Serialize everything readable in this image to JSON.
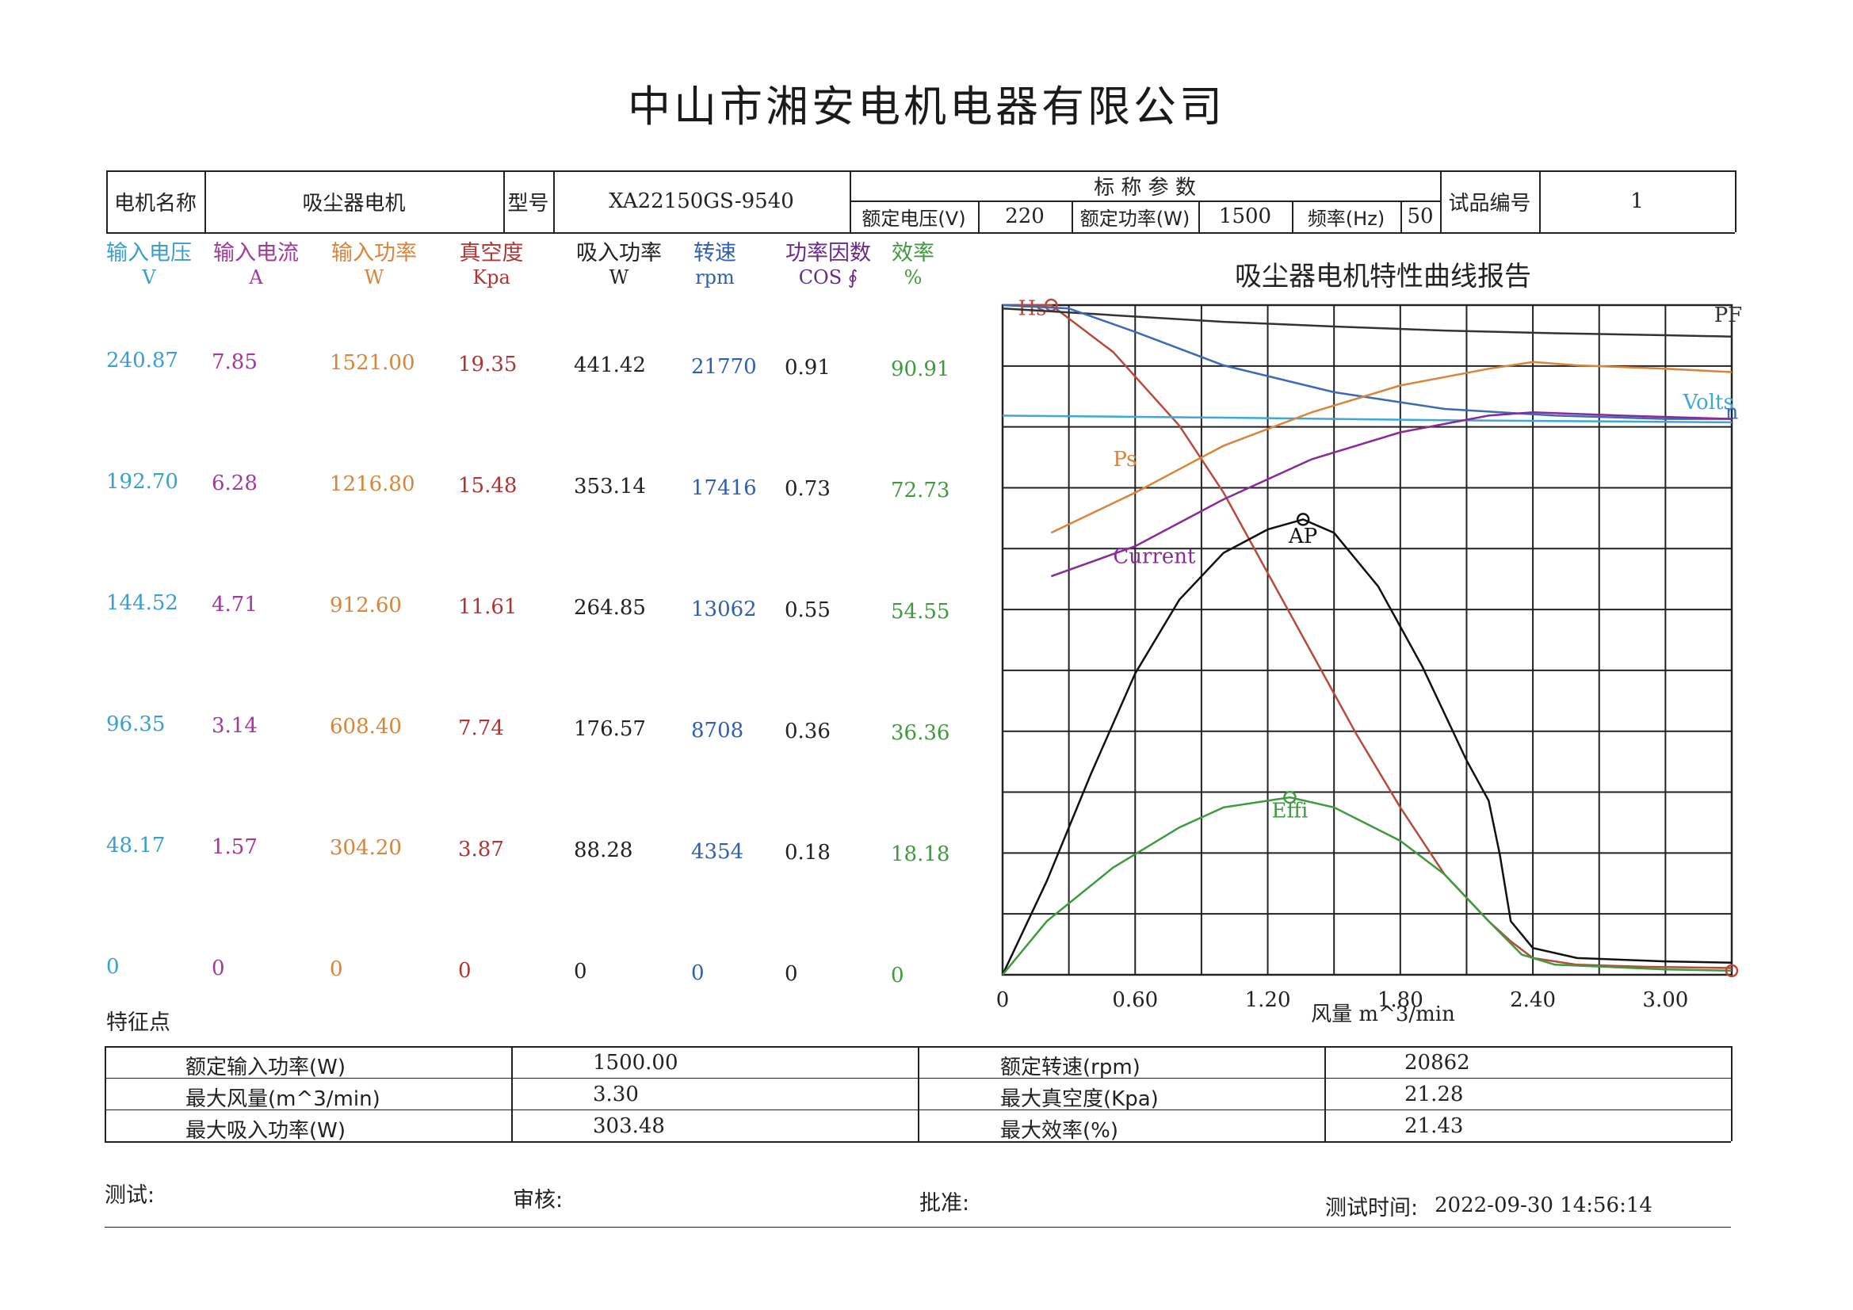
{
  "title": "中山市湘安电机电器有限公司",
  "header": {
    "motor_name_label": "电机名称",
    "motor_name": "吸尘器电机",
    "model_label": "型号",
    "model": "XA22150GS-9540",
    "nominal_params_label": "标 称 参 数",
    "rated_voltage_label": "额定电压(V)",
    "rated_voltage": "220",
    "rated_power_label": "额定功率(W)",
    "rated_power": "1500",
    "frequency_label": "频率(Hz)",
    "frequency": "50",
    "sample_no_label": "试品编号",
    "sample_no": "1"
  },
  "table": {
    "columns": [
      {
        "name": "输入电压",
        "unit": "V",
        "color": "#3a9fd0"
      },
      {
        "name": "输入电流",
        "unit": "A",
        "color": "#a33a9a"
      },
      {
        "name": "输入功率",
        "unit": "W",
        "color": "#d8843a"
      },
      {
        "name": "真空度",
        "unit": "Kpa",
        "color": "#b03434"
      },
      {
        "name": "吸入功率",
        "unit": "W",
        "color": "#222222"
      },
      {
        "name": "转速",
        "unit": "rpm",
        "color": "#2f5fb0"
      },
      {
        "name": "功率因数",
        "unit": "COS ∮",
        "color": "#6a2a8a"
      },
      {
        "name": "效率",
        "unit": "%",
        "color": "#3f9a3f"
      }
    ],
    "rows": [
      [
        "240.87",
        "7.85",
        "1521.00",
        "19.35",
        "441.42",
        "21770",
        "0.91",
        "90.91"
      ],
      [
        "192.70",
        "6.28",
        "1216.80",
        "15.48",
        "353.14",
        "17416",
        "0.73",
        "72.73"
      ],
      [
        "144.52",
        "4.71",
        "912.60",
        "11.61",
        "264.85",
        "13062",
        "0.55",
        "54.55"
      ],
      [
        "96.35",
        "3.14",
        "608.40",
        "7.74",
        "176.57",
        "8708",
        "0.36",
        "36.36"
      ],
      [
        "48.17",
        "1.57",
        "304.20",
        "3.87",
        "88.28",
        "4354",
        "0.18",
        "18.18"
      ],
      [
        "0",
        "0",
        "0",
        "0",
        "0",
        "0",
        "0",
        "0"
      ]
    ],
    "value_colors": [
      "#3a9fd0",
      "#a33a9a",
      "#d8843a",
      "#b03434",
      "#222222",
      "#2f5fb0",
      "#222222",
      "#3f9a3f"
    ]
  },
  "chart_data": {
    "type": "line",
    "title": "吸尘器电机特性曲线报告",
    "xlabel": "风量  m^3/min",
    "x_ticks": [
      "0",
      "0.60",
      "1.20",
      "1.80",
      "2.40",
      "3.00"
    ],
    "xlim": [
      0,
      3.3
    ],
    "series": [
      {
        "name": "Hs",
        "color": "#b84a3a",
        "marker_x": 0.22,
        "points": [
          [
            0.0,
            1.0
          ],
          [
            0.22,
            1.0
          ],
          [
            0.5,
            0.93
          ],
          [
            0.8,
            0.82
          ],
          [
            1.0,
            0.72
          ],
          [
            1.2,
            0.6
          ],
          [
            1.4,
            0.48
          ],
          [
            1.6,
            0.36
          ],
          [
            1.8,
            0.25
          ],
          [
            2.0,
            0.15
          ],
          [
            2.2,
            0.08
          ],
          [
            2.3,
            0.05
          ],
          [
            2.4,
            0.025
          ],
          [
            2.6,
            0.015
          ],
          [
            2.9,
            0.012
          ],
          [
            3.3,
            0.01
          ]
        ]
      },
      {
        "name": "PF",
        "color": "#333333",
        "points": [
          [
            0.0,
            0.995
          ],
          [
            0.5,
            0.985
          ],
          [
            1.0,
            0.975
          ],
          [
            1.5,
            0.968
          ],
          [
            2.0,
            0.962
          ],
          [
            2.5,
            0.958
          ],
          [
            3.0,
            0.955
          ],
          [
            3.3,
            0.953
          ]
        ]
      },
      {
        "name": "Volts",
        "color": "#3aa8d8",
        "points": [
          [
            0.0,
            0.835
          ],
          [
            1.0,
            0.832
          ],
          [
            2.0,
            0.828
          ],
          [
            3.3,
            0.825
          ]
        ]
      },
      {
        "name": "n",
        "color": "#3a6ab8",
        "points": [
          [
            0.0,
            1.0
          ],
          [
            0.3,
            0.995
          ],
          [
            0.6,
            0.96
          ],
          [
            1.0,
            0.91
          ],
          [
            1.5,
            0.87
          ],
          [
            2.0,
            0.845
          ],
          [
            2.5,
            0.835
          ],
          [
            3.0,
            0.83
          ],
          [
            3.3,
            0.83
          ]
        ]
      },
      {
        "name": "Ps",
        "color": "#d8843a",
        "points": [
          [
            0.22,
            0.66
          ],
          [
            0.6,
            0.72
          ],
          [
            1.0,
            0.79
          ],
          [
            1.4,
            0.84
          ],
          [
            1.8,
            0.88
          ],
          [
            2.2,
            0.905
          ],
          [
            2.4,
            0.915
          ],
          [
            2.6,
            0.91
          ],
          [
            3.0,
            0.905
          ],
          [
            3.3,
            0.9
          ]
        ]
      },
      {
        "name": "Current",
        "color": "#8a2a9a",
        "points": [
          [
            0.22,
            0.595
          ],
          [
            0.6,
            0.64
          ],
          [
            1.0,
            0.71
          ],
          [
            1.4,
            0.77
          ],
          [
            1.8,
            0.81
          ],
          [
            2.2,
            0.835
          ],
          [
            2.4,
            0.84
          ],
          [
            2.8,
            0.835
          ],
          [
            3.3,
            0.83
          ]
        ]
      },
      {
        "name": "AP",
        "color": "#111111",
        "marker_x": 1.36,
        "points": [
          [
            0.0,
            0.0
          ],
          [
            0.2,
            0.14
          ],
          [
            0.4,
            0.3
          ],
          [
            0.6,
            0.45
          ],
          [
            0.8,
            0.56
          ],
          [
            1.0,
            0.63
          ],
          [
            1.2,
            0.665
          ],
          [
            1.36,
            0.68
          ],
          [
            1.5,
            0.66
          ],
          [
            1.7,
            0.58
          ],
          [
            1.9,
            0.46
          ],
          [
            2.1,
            0.32
          ],
          [
            2.2,
            0.26
          ],
          [
            2.25,
            0.18
          ],
          [
            2.3,
            0.08
          ],
          [
            2.4,
            0.04
          ],
          [
            2.6,
            0.025
          ],
          [
            3.0,
            0.02
          ],
          [
            3.3,
            0.018
          ]
        ]
      },
      {
        "name": "Effi",
        "color": "#3f9a3f",
        "marker_x": 1.3,
        "points": [
          [
            0.0,
            0.0
          ],
          [
            0.2,
            0.08
          ],
          [
            0.5,
            0.16
          ],
          [
            0.8,
            0.22
          ],
          [
            1.0,
            0.25
          ],
          [
            1.3,
            0.265
          ],
          [
            1.5,
            0.25
          ],
          [
            1.8,
            0.2
          ],
          [
            2.0,
            0.15
          ],
          [
            2.2,
            0.08
          ],
          [
            2.35,
            0.03
          ],
          [
            2.5,
            0.015
          ],
          [
            3.0,
            0.008
          ],
          [
            3.3,
            0.006
          ]
        ]
      }
    ]
  },
  "features": {
    "label": "特征点",
    "rows": [
      {
        "k1": "额定输入功率(W)",
        "v1": "1500.00",
        "k2": "额定转速(rpm)",
        "v2": "20862"
      },
      {
        "k1": "最大风量(m^3/min)",
        "v1": "3.30",
        "k2": "最大真空度(Kpa)",
        "v2": "21.28"
      },
      {
        "k1": "最大吸入功率(W)",
        "v1": "303.48",
        "k2": "最大效率(%)",
        "v2": "21.43"
      }
    ]
  },
  "footer": {
    "test_label": "测试:",
    "review_label": "审核:",
    "approve_label": "批准:",
    "test_time_label": "测试时间:",
    "test_time": "2022-09-30 14:56:14"
  }
}
